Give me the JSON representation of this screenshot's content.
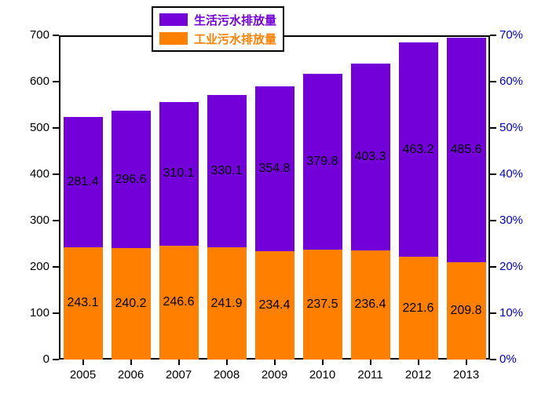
{
  "chart_data": {
    "type": "bar",
    "stacked": true,
    "title": "",
    "categories": [
      "2005",
      "2006",
      "2007",
      "2008",
      "2009",
      "2010",
      "2011",
      "2012",
      "2013"
    ],
    "series": [
      {
        "name": "工业污水排放量",
        "key": "industrial",
        "color": "#FF8000",
        "values": [
          243.1,
          240.2,
          246.6,
          241.9,
          234.4,
          237.5,
          236.4,
          221.6,
          209.8
        ]
      },
      {
        "name": "生活污水排放量",
        "key": "domestic",
        "color": "#7300D9",
        "values": [
          281.4,
          296.6,
          310.1,
          330.1,
          354.8,
          379.8,
          403.3,
          463.2,
          485.6
        ]
      }
    ],
    "legend": [
      {
        "label": "生活污水排放量",
        "color": "#7300D9"
      },
      {
        "label": "工业污水排放量",
        "color": "#FF8000"
      }
    ],
    "left_axis": {
      "min": 0,
      "max": 700,
      "step": 100,
      "tick_labels": [
        "0",
        "100",
        "200",
        "300",
        "400",
        "500",
        "600",
        "700"
      ],
      "color": "#000000"
    },
    "right_axis": {
      "min": 0,
      "max": 70,
      "step": 10,
      "tick_labels": [
        "0%",
        "10%",
        "20%",
        "30%",
        "40%",
        "50%",
        "60%",
        "70%"
      ],
      "color": "#0000CC"
    },
    "grid": false,
    "legend_position": "top-center"
  }
}
